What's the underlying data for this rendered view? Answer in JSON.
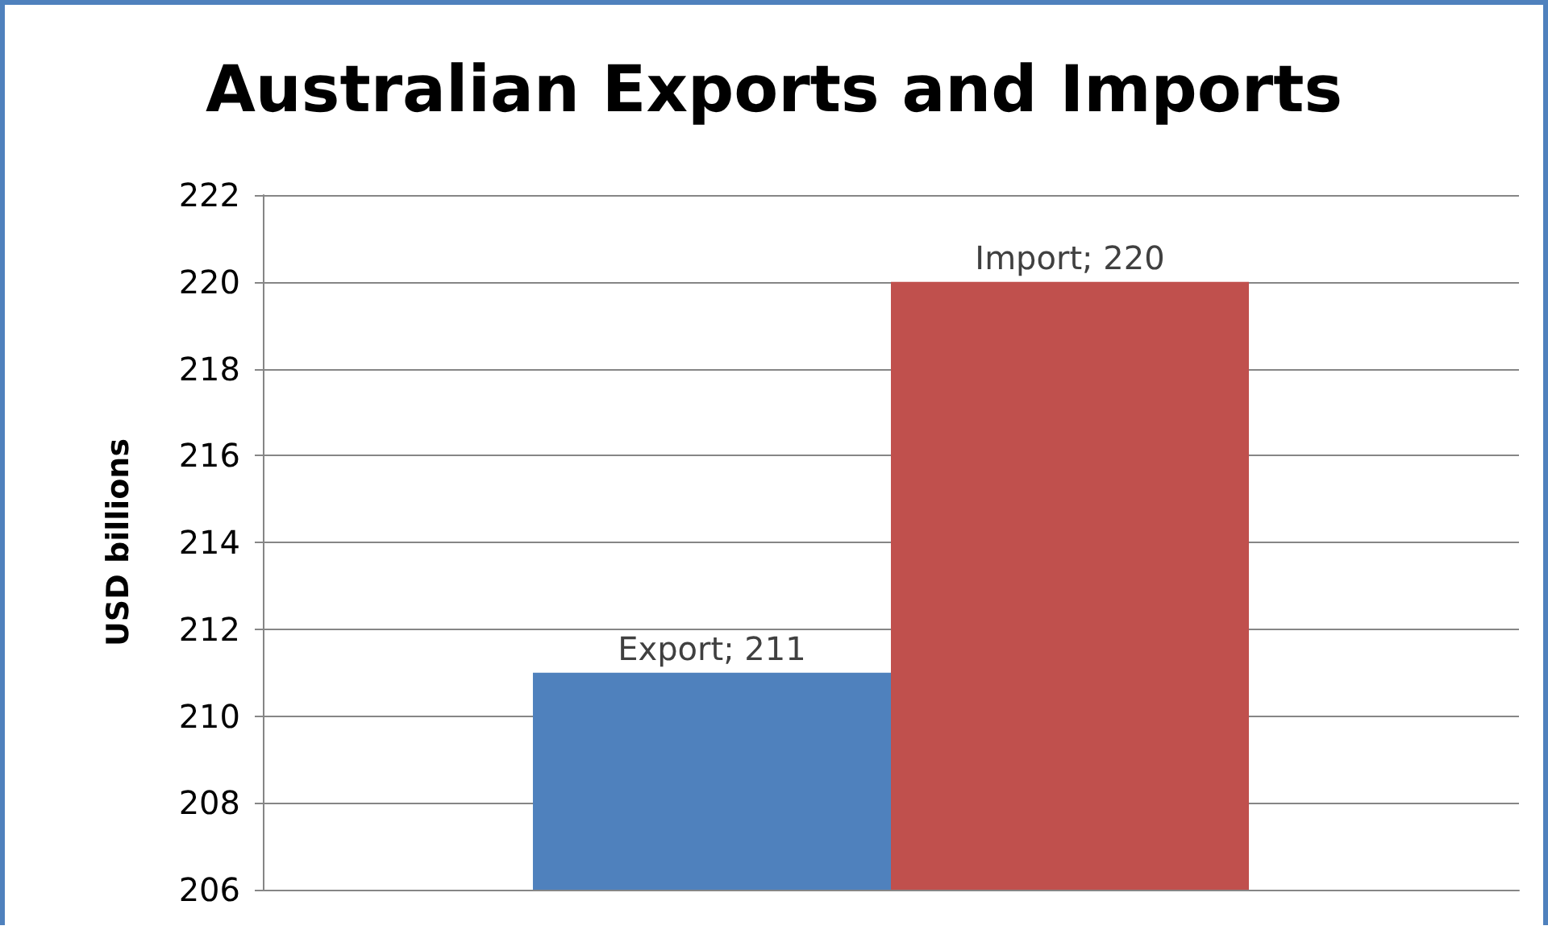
{
  "chart_data": {
    "type": "bar",
    "title": "Australian Exports and Imports",
    "ylabel": "USD billions",
    "categories": [
      null
    ],
    "series": [
      {
        "color": "#4f81bd",
        "values": [
          211
        ],
        "value_labels": [
          "Export; 211"
        ]
      },
      {
        "color": "#c0504d",
        "values": [
          220
        ],
        "value_labels": [
          "Import; 220"
        ]
      }
    ],
    "ylim": [
      206,
      222
    ],
    "yticks": [
      206,
      208,
      210,
      212,
      214,
      216,
      218,
      220,
      222
    ],
    "grid": "y"
  }
}
